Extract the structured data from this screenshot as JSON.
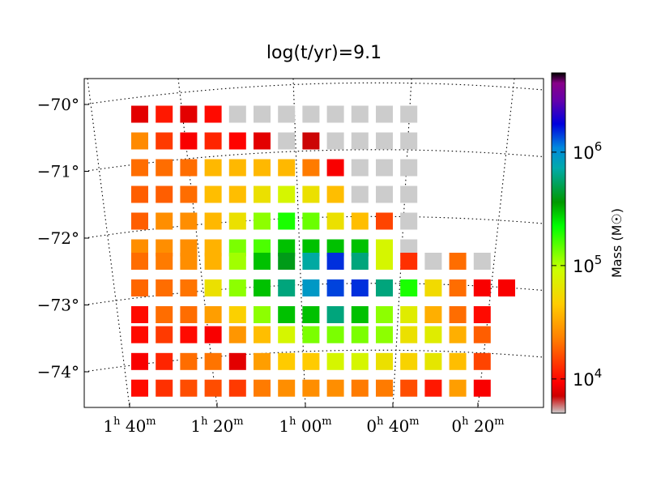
{
  "chart_data": {
    "type": "heatmap",
    "title": "log(t/yr)=9.1",
    "projection": "sky map (RA vs Dec) with curved coordinate grid",
    "grid": true,
    "grid_style": "dotted",
    "y_ticks": [
      {
        "value": -70,
        "label": "−70°"
      },
      {
        "value": -71,
        "label": "−71°"
      },
      {
        "value": -72,
        "label": "−72°"
      },
      {
        "value": -73,
        "label": "−73°"
      },
      {
        "value": -74,
        "label": "−74°"
      }
    ],
    "x_ticks": [
      {
        "value": "1h40m",
        "label_h": "1",
        "unit_h": "h",
        "label_m": "40",
        "unit_m": "m"
      },
      {
        "value": "1h20m",
        "label_h": "1",
        "unit_h": "h",
        "label_m": "20",
        "unit_m": "m"
      },
      {
        "value": "1h00m",
        "label_h": "1",
        "unit_h": "h",
        "label_m": "00",
        "unit_m": "m"
      },
      {
        "value": "0h40m",
        "label_h": "0",
        "unit_h": "h",
        "label_m": "40",
        "unit_m": "m"
      },
      {
        "value": "0h20m",
        "label_h": "0",
        "unit_h": "h",
        "label_m": "20",
        "unit_m": "m"
      }
    ],
    "colorbar": {
      "label": "Mass (M☉)",
      "scale": "log",
      "range": [
        5000,
        5000000
      ],
      "ticks": [
        {
          "value": 10000,
          "label_base": "10",
          "label_exp": "4"
        },
        {
          "value": 100000,
          "label_base": "10",
          "label_exp": "5"
        },
        {
          "value": 1000000,
          "label_base": "10",
          "label_exp": "6"
        }
      ],
      "colors": [
        "#cccccc",
        "#cc0000",
        "#ff0000",
        "#ff8000",
        "#ffcc00",
        "#ccff00",
        "#00ff00",
        "#009900",
        "#00aaaa",
        "#0088dd",
        "#0000dd",
        "#6600aa",
        "#880088",
        "#000000"
      ],
      "color_stops": [
        0,
        0.05,
        0.09,
        0.22,
        0.32,
        0.42,
        0.55,
        0.62,
        0.72,
        0.78,
        0.85,
        0.92,
        0.97,
        1.0
      ]
    },
    "no_data_color": "#cccccc",
    "no_data_value": 5000,
    "rows": [
      {
        "dec": -70.0,
        "masses": [
          8000,
          11000,
          8000,
          10000,
          5000,
          5000,
          5000,
          5000,
          5000,
          5000,
          5000,
          5000
        ]
      },
      {
        "dec": -70.4,
        "masses": [
          25000,
          14000,
          9000,
          12000,
          9500,
          8000,
          5000,
          7000,
          5000,
          5000,
          5000,
          5000
        ]
      },
      {
        "dec": -70.8,
        "masses": [
          20000,
          20000,
          20000,
          38000,
          38000,
          38000,
          38000,
          22000,
          9000,
          5000,
          5000,
          5000
        ]
      },
      {
        "dec": -71.2,
        "masses": [
          18000,
          18000,
          20000,
          40000,
          40000,
          60000,
          80000,
          60000,
          40000,
          5000,
          5000,
          5000
        ]
      },
      {
        "dec": -71.6,
        "masses": [
          18000,
          26000,
          26000,
          38000,
          60000,
          120000,
          200000,
          140000,
          60000,
          40000,
          15000,
          5000
        ]
      },
      {
        "dec": -72.0,
        "masses": [
          26000,
          26000,
          26000,
          36000,
          130000,
          160000,
          300000,
          300000,
          300000,
          300000,
          80000,
          5000
        ]
      },
      {
        "dec": -72.2,
        "masses": [
          20000,
          22000,
          26000,
          36000,
          110000,
          300000,
          400000,
          700000,
          1500000,
          600000,
          80000,
          13000,
          5000,
          20000,
          5000
        ]
      },
      {
        "dec": -72.6,
        "masses": [
          19000,
          20000,
          21000,
          60000,
          120000,
          300000,
          600000,
          900000,
          1400000,
          1500000,
          600000,
          200000,
          55000,
          20000,
          9000,
          9000
        ]
      },
      {
        "dec": -73.0,
        "masses": [
          10000,
          20000,
          20000,
          30000,
          48000,
          120000,
          300000,
          300000,
          600000,
          300000,
          120000,
          70000,
          35000,
          20000,
          10000
        ]
      },
      {
        "dec": -73.3,
        "masses": [
          10000,
          14000,
          10000,
          9000,
          28000,
          40000,
          80000,
          130000,
          130000,
          130000,
          120000,
          60000,
          70000,
          35000,
          18000
        ]
      },
      {
        "dec": -73.7,
        "masses": [
          9000,
          12000,
          20000,
          21000,
          8000,
          30000,
          45000,
          45000,
          80000,
          80000,
          60000,
          50000,
          65000,
          40000,
          15000
        ]
      },
      {
        "dec": -74.1,
        "masses": [
          10000,
          13000,
          16000,
          16000,
          14000,
          22000,
          26000,
          26000,
          26000,
          22000,
          22000,
          16000,
          11000,
          30000,
          9000
        ]
      }
    ]
  }
}
